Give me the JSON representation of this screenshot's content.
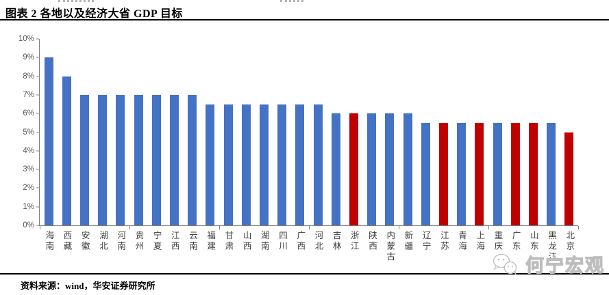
{
  "header": {
    "title": "图表 2 各地以及经济大省 GDP 目标"
  },
  "chart_data": {
    "type": "bar",
    "title": "图表 2 各地以及经济大省 GDP 目标",
    "categories": [
      "海南",
      "西藏",
      "安徽",
      "湖北",
      "河南",
      "贵州",
      "宁夏",
      "江西",
      "云南",
      "福建",
      "甘肃",
      "山西",
      "湖南",
      "四川",
      "广西",
      "河北",
      "吉林",
      "浙江",
      "陕西",
      "内蒙古",
      "新疆",
      "辽宁",
      "江苏",
      "青海",
      "上海",
      "重庆",
      "广东",
      "山东",
      "黑龙江",
      "北京"
    ],
    "values": [
      9,
      8,
      7,
      7,
      7,
      7,
      7,
      7,
      7,
      6.5,
      6.5,
      6.5,
      6.5,
      6.5,
      6.5,
      6.5,
      6,
      6,
      6,
      6,
      6,
      5.5,
      5.5,
      5.5,
      5.5,
      5.5,
      5.5,
      5.5,
      5.5,
      5
    ],
    "value_unit": "%",
    "highlighted": [
      "浙江",
      "江苏",
      "上海",
      "广东",
      "山东",
      "北京"
    ],
    "colors": {
      "bar_default": "#4472C4",
      "bar_highlight": "#C00000"
    },
    "ylim": [
      0,
      10
    ],
    "ytick_values": [
      0,
      1,
      2,
      3,
      4,
      5,
      6,
      7,
      8,
      9,
      10
    ],
    "ytick_labels": [
      "0%",
      "1%",
      "2%",
      "3%",
      "4%",
      "5%",
      "6%",
      "7%",
      "8%",
      "9%",
      "10%"
    ],
    "xtick_every": 5,
    "grid": "off",
    "legend": "none",
    "xlabel": "",
    "ylabel": ""
  },
  "footer": {
    "source": "资料来源：wind，华安证券研究所"
  },
  "watermark": {
    "text": "何宁宏观"
  }
}
